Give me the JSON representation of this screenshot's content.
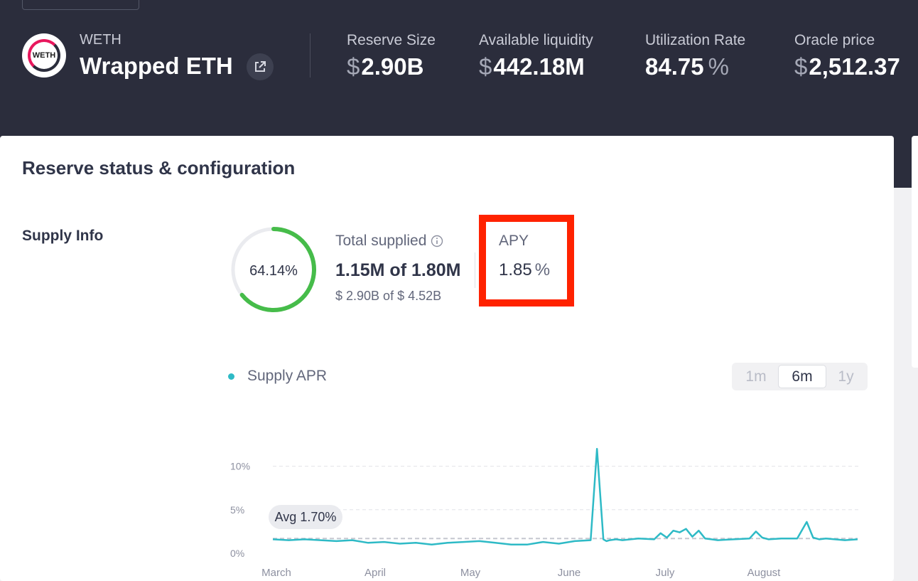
{
  "asset": {
    "symbol": "WETH",
    "name": "Wrapped ETH",
    "logo_text": "WETH"
  },
  "stats": [
    {
      "label": "Reserve Size",
      "currency": "$",
      "value": "2.90B",
      "suffix": ""
    },
    {
      "label": "Available liquidity",
      "currency": "$",
      "value": "442.18M",
      "suffix": ""
    },
    {
      "label": "Utilization Rate",
      "currency": "",
      "value": "84.75",
      "suffix": "%"
    },
    {
      "label": "Oracle price",
      "currency": "$",
      "value": "2,512.37",
      "suffix": ""
    }
  ],
  "panel": {
    "title": "Reserve status & configuration"
  },
  "supply_info": {
    "label": "Supply Info",
    "donut_text": "64.14%",
    "donut_fraction": 0.6414,
    "total_supplied_label": "Total supplied",
    "total_supplied_value": "1.15M of 1.80M",
    "total_supplied_usd": "$ 2.90B of $ 4.52B",
    "apy_label": "APY",
    "apy_value": "1.85",
    "apy_suffix": "%"
  },
  "chart_controls": {
    "legend_label": "Supply APR",
    "ranges": [
      "1m",
      "6m",
      "1y"
    ],
    "selected_range": "6m"
  },
  "chart_data": {
    "type": "line",
    "series": [
      {
        "name": "Supply APR",
        "color": "#2ebac6",
        "x": [
          0,
          5,
          10,
          15,
          20,
          25,
          30,
          35,
          40,
          45,
          50,
          55,
          60,
          65,
          70,
          75,
          80,
          85,
          90,
          95,
          100,
          102,
          104,
          105,
          106,
          108,
          110,
          115,
          120,
          122,
          124,
          126,
          128,
          130,
          132,
          134,
          136,
          138,
          140,
          145,
          150,
          152,
          154,
          156,
          160,
          165,
          168,
          170,
          172,
          174,
          180,
          184
        ],
        "values": [
          1.6,
          1.5,
          1.6,
          1.5,
          1.4,
          1.5,
          1.2,
          1.3,
          1.1,
          1.2,
          1.0,
          1.2,
          1.3,
          1.4,
          1.2,
          1.0,
          1.0,
          1.3,
          1.1,
          1.4,
          1.5,
          12.0,
          1.6,
          1.4,
          1.5,
          1.6,
          1.5,
          1.7,
          1.6,
          2.3,
          1.8,
          2.6,
          2.4,
          2.8,
          1.9,
          2.6,
          1.7,
          1.6,
          1.5,
          1.6,
          1.7,
          2.5,
          1.8,
          1.6,
          1.7,
          1.7,
          3.6,
          1.8,
          1.6,
          1.7,
          1.5,
          1.6
        ]
      }
    ],
    "x_ticks": [
      "March",
      "April",
      "May",
      "June",
      "July",
      "August"
    ],
    "y_ticks": [
      "0%",
      "5%",
      "10%"
    ],
    "ylim": [
      0,
      12.5
    ],
    "average": 1.7,
    "average_label": "Avg 1.70%",
    "grid": "dashed horizontal"
  }
}
